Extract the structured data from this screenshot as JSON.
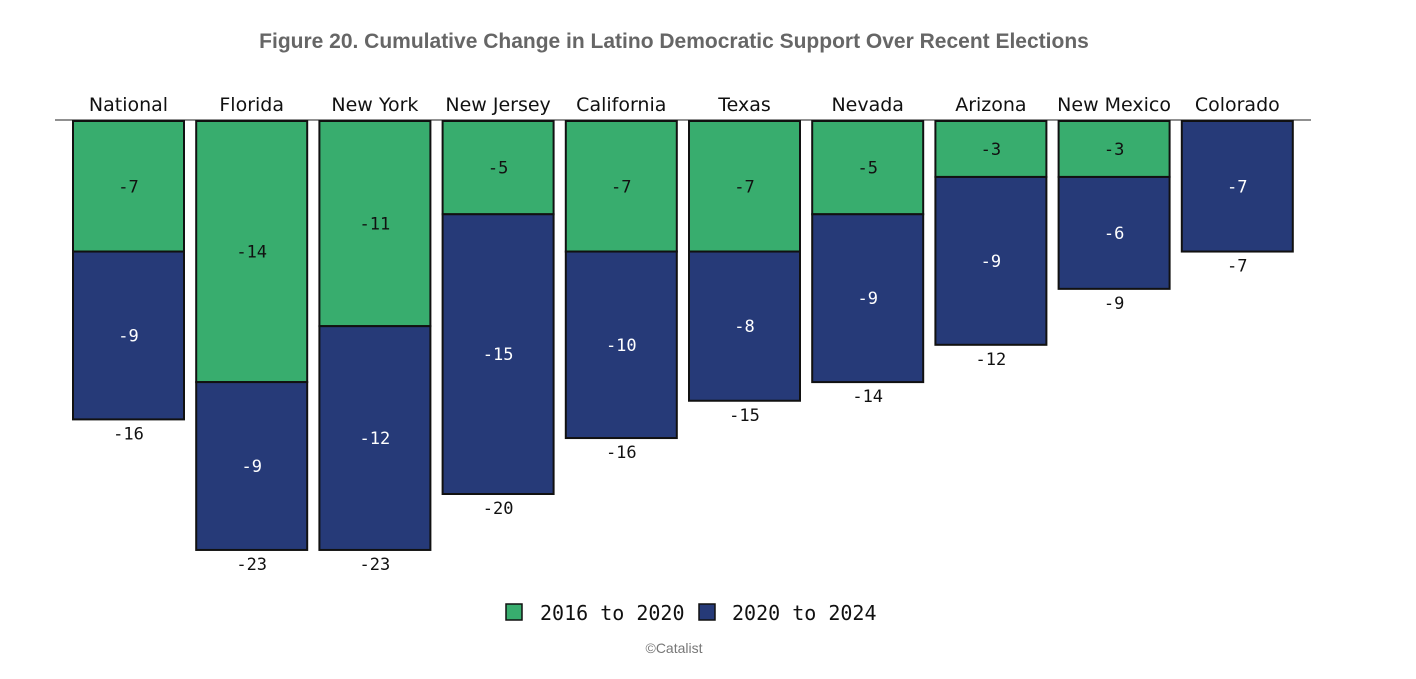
{
  "chart_data": {
    "type": "bar",
    "stacked": true,
    "title": "Figure 20. Cumulative Change in Latino Democratic Support Over Recent Elections",
    "categories": [
      "National",
      "Florida",
      "New York",
      "New Jersey",
      "California",
      "Texas",
      "Nevada",
      "Arizona",
      "New Mexico",
      "Colorado"
    ],
    "series": [
      {
        "name": "2016 to 2020",
        "color": "#38ad6e",
        "values": [
          -7,
          -14,
          -11,
          -5,
          -7,
          -7,
          -5,
          -3,
          -3,
          null
        ]
      },
      {
        "name": "2020 to 2024",
        "color": "#263a78",
        "values": [
          -9,
          -9,
          -12,
          -15,
          -10,
          -8,
          -9,
          -9,
          -6,
          -7
        ]
      }
    ],
    "totals": [
      -16,
      -23,
      -23,
      -20,
      -16,
      -15,
      -14,
      -12,
      -9,
      -7
    ],
    "legend_position": "bottom",
    "grid": false
  },
  "credit": "©Catalist"
}
